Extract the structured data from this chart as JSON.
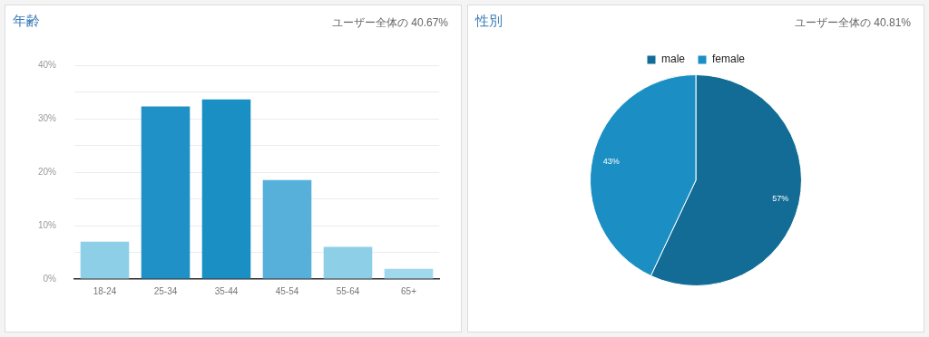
{
  "chart_data": [
    {
      "type": "bar",
      "title": "年齢",
      "subtitle": "ユーザー全体の 40.67%",
      "categories": [
        "18-24",
        "25-34",
        "35-44",
        "45-54",
        "55-64",
        "65+"
      ],
      "values": [
        7.0,
        32.3,
        33.6,
        18.5,
        6.0,
        1.9
      ],
      "colors": [
        "#8ecfe8",
        "#1f91c6",
        "#1a8fc4",
        "#56b0d9",
        "#8ecfe8",
        "#a0d8ee"
      ],
      "ylim": [
        0,
        40
      ],
      "yticks": [
        {
          "value": 0,
          "label": "0%"
        },
        {
          "value": 5,
          "label": null
        },
        {
          "value": 10,
          "label": "10%"
        },
        {
          "value": 15,
          "label": null
        },
        {
          "value": 20,
          "label": "20%"
        },
        {
          "value": 25,
          "label": null
        },
        {
          "value": 30,
          "label": "30%"
        },
        {
          "value": 35,
          "label": null
        },
        {
          "value": 40,
          "label": "40%"
        }
      ],
      "grid": "y",
      "legend": false
    },
    {
      "type": "pie",
      "title": "性別",
      "subtitle": "ユーザー全体の 40.81%",
      "categories": [
        "male",
        "female"
      ],
      "values": [
        57,
        43
      ],
      "colors": [
        "#136c95",
        "#1b8fc4"
      ],
      "value_labels": [
        "57%",
        "43%"
      ],
      "legend": "top"
    }
  ]
}
